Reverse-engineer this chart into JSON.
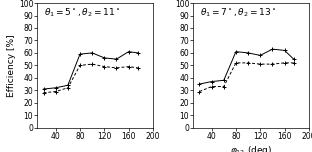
{
  "panel1": {
    "label": "$\\theta_1= 5^\\circ, \\theta_2=11^\\circ$",
    "solid_x": [
      20,
      40,
      60,
      80,
      100,
      120,
      140,
      160,
      175
    ],
    "solid_y": [
      31,
      32,
      34,
      59,
      60,
      56,
      55,
      61,
      60
    ],
    "dashed_x": [
      20,
      40,
      60,
      80,
      100,
      120,
      140,
      160,
      175
    ],
    "dashed_y": [
      28,
      29,
      32,
      50,
      51,
      49,
      48,
      49,
      48
    ]
  },
  "panel2": {
    "label": "$\\theta_1= 7^\\circ, \\theta_2=13^\\circ$",
    "solid_x": [
      20,
      40,
      60,
      80,
      100,
      120,
      140,
      160,
      175
    ],
    "solid_y": [
      35,
      37,
      38,
      61,
      60,
      58,
      63,
      62,
      55
    ],
    "dashed_x": [
      20,
      40,
      60,
      80,
      100,
      120,
      140,
      160,
      175
    ],
    "dashed_y": [
      29,
      33,
      33,
      52,
      52,
      51,
      51,
      52,
      52
    ]
  },
  "ylim": [
    0,
    100
  ],
  "xlim": [
    10,
    200
  ],
  "yticks": [
    0,
    10,
    20,
    30,
    40,
    50,
    60,
    70,
    80,
    90,
    100
  ],
  "xticks": [
    40,
    80,
    120,
    160,
    200
  ],
  "ylabel": "Efficiency [%]",
  "xlabel": "$\\varphi_{12}$ (deg)",
  "line_color": "black",
  "bg_color": "white",
  "annotation_fontsize": 6.5,
  "axis_fontsize": 6.5,
  "tick_fontsize": 5.5
}
